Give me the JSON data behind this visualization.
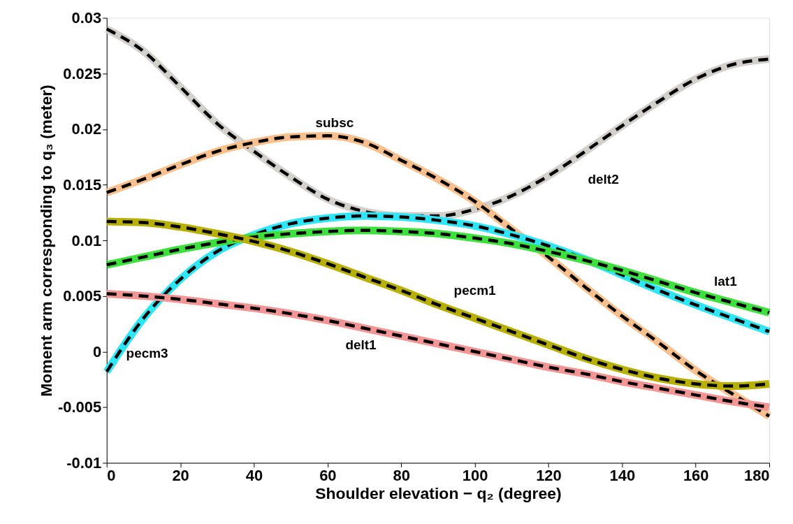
{
  "chart_data": {
    "type": "line",
    "xlabel": "Shoulder elevation − q₂ (degree)",
    "ylabel": "Moment arm corresponding to q₃ (meter)",
    "x": [
      0,
      10,
      20,
      30,
      40,
      50,
      60,
      70,
      80,
      90,
      100,
      110,
      120,
      130,
      140,
      150,
      160,
      170,
      180
    ],
    "xlim": [
      0,
      180
    ],
    "xticks": [
      0,
      20,
      40,
      60,
      80,
      100,
      120,
      140,
      160,
      180
    ],
    "ylim": [
      -0.01,
      0.03
    ],
    "yticks": [
      -0.01,
      -0.005,
      0,
      0.005,
      0.01,
      0.015,
      0.02,
      0.025,
      0.03
    ],
    "grid": false,
    "legend": false,
    "marker": "none",
    "series": [
      {
        "name": "delt2",
        "color": "#d3d0cb",
        "line_style": "solid",
        "values": [
          0.029,
          0.027,
          0.0238,
          0.0205,
          0.018,
          0.0157,
          0.0137,
          0.0126,
          0.0122,
          0.0122,
          0.0128,
          0.014,
          0.0158,
          0.018,
          0.0203,
          0.0225,
          0.0245,
          0.0258,
          0.0263
        ]
      },
      {
        "color": "#000000",
        "line_style": "dashed",
        "values": [
          0.029,
          0.027,
          0.0238,
          0.0205,
          0.018,
          0.0157,
          0.0137,
          0.0126,
          0.0122,
          0.0122,
          0.0128,
          0.014,
          0.0158,
          0.018,
          0.0203,
          0.0225,
          0.0245,
          0.0258,
          0.0263
        ]
      },
      {
        "name": "subsc",
        "color": "#f9c08e",
        "line_style": "solid",
        "values": [
          0.0143,
          0.0155,
          0.0168,
          0.018,
          0.0188,
          0.0193,
          0.0194,
          0.0188,
          0.0172,
          0.0155,
          0.0135,
          0.011,
          0.0085,
          0.0058,
          0.0032,
          0.0008,
          -0.0017,
          -0.0038,
          -0.0058
        ]
      },
      {
        "color": "#000000",
        "line_style": "dashed",
        "values": [
          0.0143,
          0.0155,
          0.0168,
          0.018,
          0.0188,
          0.0193,
          0.0194,
          0.0188,
          0.0172,
          0.0155,
          0.0135,
          0.011,
          0.0085,
          0.0058,
          0.0032,
          0.0008,
          -0.0017,
          -0.0038,
          -0.0058
        ]
      },
      {
        "name": "pecm3",
        "color": "#2fe6f7",
        "line_style": "solid",
        "values": [
          -0.0018,
          0.003,
          0.0065,
          0.009,
          0.0105,
          0.0115,
          0.012,
          0.0122,
          0.0121,
          0.0118,
          0.0113,
          0.0105,
          0.0095,
          0.0083,
          0.0069,
          0.0055,
          0.0042,
          0.003,
          0.0018
        ]
      },
      {
        "color": "#000000",
        "line_style": "dashed",
        "values": [
          -0.0018,
          0.003,
          0.0065,
          0.009,
          0.0105,
          0.0115,
          0.012,
          0.0122,
          0.0121,
          0.0118,
          0.0113,
          0.0105,
          0.0095,
          0.0083,
          0.0069,
          0.0055,
          0.0042,
          0.003,
          0.0018
        ]
      },
      {
        "name": "lat1",
        "color": "#3ee03e",
        "line_style": "solid",
        "values": [
          0.0078,
          0.0085,
          0.0092,
          0.0098,
          0.0103,
          0.0106,
          0.0108,
          0.0109,
          0.0108,
          0.0106,
          0.0102,
          0.0097,
          0.009,
          0.0082,
          0.0073,
          0.0063,
          0.0053,
          0.0044,
          0.0035
        ]
      },
      {
        "color": "#000000",
        "line_style": "dashed",
        "values": [
          0.0078,
          0.0085,
          0.0092,
          0.0098,
          0.0103,
          0.0106,
          0.0108,
          0.0109,
          0.0108,
          0.0106,
          0.0102,
          0.0097,
          0.009,
          0.0082,
          0.0073,
          0.0063,
          0.0053,
          0.0044,
          0.0035
        ]
      },
      {
        "name": "pecm1",
        "color": "#b8b000",
        "line_style": "solid",
        "values": [
          0.0117,
          0.0116,
          0.0112,
          0.0106,
          0.0099,
          0.009,
          0.0079,
          0.0067,
          0.0055,
          0.0042,
          0.003,
          0.0018,
          0.0006,
          -0.0006,
          -0.0016,
          -0.0024,
          -0.0029,
          -0.0031,
          -0.0029
        ]
      },
      {
        "color": "#000000",
        "line_style": "dashed",
        "values": [
          0.0117,
          0.0116,
          0.0112,
          0.0106,
          0.0099,
          0.009,
          0.0079,
          0.0067,
          0.0055,
          0.0042,
          0.003,
          0.0018,
          0.0006,
          -0.0006,
          -0.0016,
          -0.0024,
          -0.0029,
          -0.0031,
          -0.0029
        ]
      },
      {
        "name": "delt1",
        "color": "#f49595",
        "line_style": "solid",
        "values": [
          0.0052,
          0.005,
          0.0047,
          0.0043,
          0.0039,
          0.0034,
          0.0028,
          0.0021,
          0.0014,
          0.0007,
          0.0,
          -0.0007,
          -0.0014,
          -0.002,
          -0.0027,
          -0.0033,
          -0.0039,
          -0.0045,
          -0.005
        ]
      },
      {
        "color": "#000000",
        "line_style": "dashed",
        "values": [
          0.0052,
          0.005,
          0.0047,
          0.0043,
          0.0039,
          0.0034,
          0.0028,
          0.0021,
          0.0014,
          0.0007,
          0.0,
          -0.0007,
          -0.0014,
          -0.002,
          -0.0027,
          -0.0033,
          -0.0039,
          -0.0045,
          -0.005
        ]
      }
    ]
  }
}
